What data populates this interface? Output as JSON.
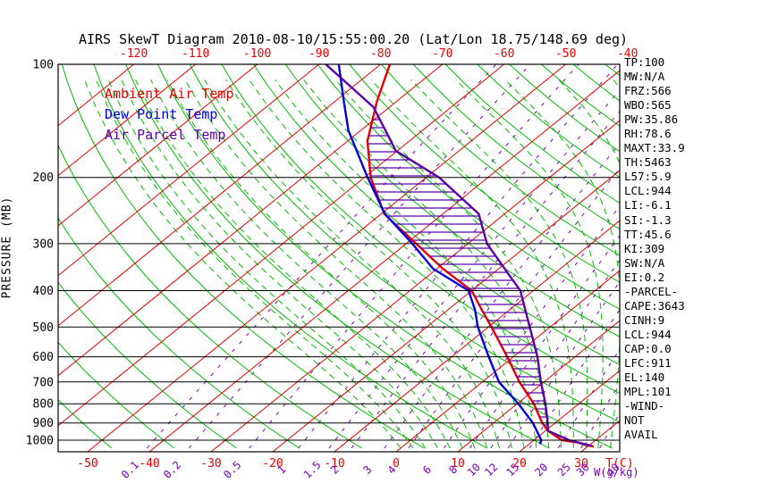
{
  "chart_data": {
    "type": "skewt-log-p",
    "title": "AIRS SkewT Diagram 2010-08-10/15:55:00.20 (Lat/Lon 18.75/148.69 deg)",
    "y_axis": {
      "label": "PRESSURE (MB)",
      "ticks": [
        100,
        200,
        300,
        400,
        500,
        600,
        700,
        800,
        900,
        1000
      ],
      "scale": "log",
      "range": [
        100,
        1050
      ]
    },
    "x_axis": {
      "label": "T(C)",
      "top_ticks": [
        -120,
        -110,
        -100,
        -90,
        -80,
        -70,
        -60,
        -50,
        -40
      ],
      "bottom_ticks": [
        -50,
        -40,
        -30,
        -20,
        -10,
        0,
        10,
        20,
        30
      ],
      "isotherm_step": 10,
      "isotherm_range": [
        -120,
        40
      ]
    },
    "mixing_ratio": {
      "label": "W(g/kg)",
      "values": [
        0.1,
        0.2,
        0.5,
        1,
        1.5,
        2,
        3,
        4,
        6,
        8,
        10,
        12,
        15,
        20,
        25,
        30,
        40
      ],
      "labeled": [
        0.1,
        0.2,
        0.5,
        1,
        1.5,
        2,
        3,
        4,
        6,
        8,
        10,
        12,
        15,
        20,
        25,
        30,
        40
      ]
    },
    "dry_adiabats": {
      "theta_start": -60,
      "theta_end": 170,
      "step": 10
    },
    "moist_adiabats": {
      "t_start": 0,
      "t_end": 40,
      "step": 2
    },
    "legend": [
      {
        "label": "Ambient Air Temp",
        "color": "#e60000"
      },
      {
        "label": "Dew Point Temp",
        "color": "#0000dd"
      },
      {
        "label": "Air Parcel Temp",
        "color": "#5c00a8"
      }
    ],
    "series": [
      {
        "name": "ambient_air_temp",
        "color": "#e60000",
        "points": [
          [
            100,
            -78.5
          ],
          [
            125,
            -73.3
          ],
          [
            160,
            -66.8
          ],
          [
            200,
            -59
          ],
          [
            250,
            -49.5
          ],
          [
            300,
            -38.4
          ],
          [
            350,
            -29
          ],
          [
            400,
            -20
          ],
          [
            450,
            -14.5
          ],
          [
            500,
            -9.5
          ],
          [
            600,
            -1
          ],
          [
            700,
            6
          ],
          [
            800,
            12.7
          ],
          [
            900,
            17.9
          ],
          [
            944,
            20.4
          ],
          [
            1000,
            24.5
          ],
          [
            1015,
            27.7
          ],
          [
            1030,
            29.4
          ],
          [
            1040,
            31
          ]
        ]
      },
      {
        "name": "dew_point_temp",
        "color": "#0000dd",
        "points": [
          [
            100,
            -86.8
          ],
          [
            125,
            -78.7
          ],
          [
            150,
            -72
          ],
          [
            200,
            -59.5
          ],
          [
            250,
            -49.4
          ],
          [
            300,
            -39
          ],
          [
            350,
            -30.6
          ],
          [
            400,
            -20.5
          ],
          [
            450,
            -15.6
          ],
          [
            500,
            -11.7
          ],
          [
            600,
            -4
          ],
          [
            700,
            2.7
          ],
          [
            800,
            10.2
          ],
          [
            900,
            16.4
          ],
          [
            1000,
            21.2
          ],
          [
            1025,
            21.8
          ]
        ]
      },
      {
        "name": "air_parcel_temp",
        "color": "#5c00a8",
        "points": [
          [
            100,
            -88.9
          ],
          [
            130,
            -72.6
          ],
          [
            170,
            -60.2
          ],
          [
            200,
            -47.9
          ],
          [
            250,
            -34.2
          ],
          [
            300,
            -26.9
          ],
          [
            350,
            -19
          ],
          [
            400,
            -12.1
          ],
          [
            500,
            -3.3
          ],
          [
            600,
            3.9
          ],
          [
            700,
            9.5
          ],
          [
            800,
            14.6
          ],
          [
            900,
            18.8
          ],
          [
            944,
            20.4
          ],
          [
            1000,
            25.7
          ],
          [
            1035,
            30.5
          ]
        ]
      }
    ],
    "cape_hatch": {
      "between": [
        "ambient_air_temp",
        "air_parcel_temp"
      ],
      "p_top": 140,
      "p_bottom": 944,
      "color": "#5c00a8"
    },
    "colors": {
      "isotherm": "#e60000",
      "dry_adiabat": "#00bb00",
      "moist_adiabat": "#00bb00",
      "mixing_ratio": "#7a00b4",
      "pressure_line": "#000000"
    },
    "side_panel": {
      "lines": [
        "TP:100",
        "MW:N/A",
        "FRZ:566",
        "WBO:565",
        "PW:35.86",
        "RH:78.6",
        "MAXT:33.9",
        "TH:5463",
        "L57:5.9",
        "LCL:944",
        "LI:-6.1",
        "SI:-1.3",
        "TT:45.6",
        "KI:309",
        "SW:N/A",
        "EI:0.2",
        "-PARCEL-",
        "CAPE:3643",
        "CINH:9",
        "LCL:944",
        "CAP:0.0",
        "LFC:911",
        "EL:140",
        "MPL:101",
        "-WIND-",
        "NOT",
        "AVAIL"
      ]
    }
  }
}
